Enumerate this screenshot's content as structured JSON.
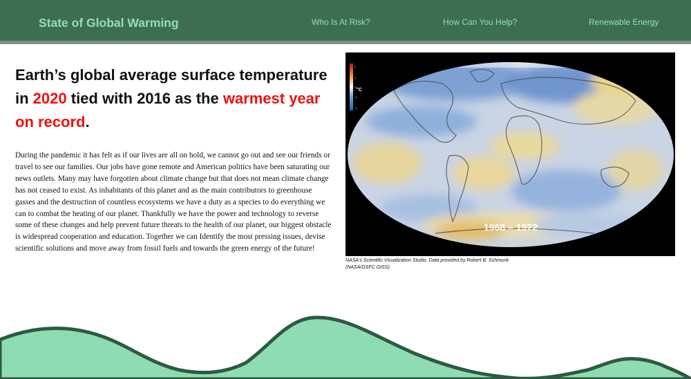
{
  "nav": {
    "brand": "State of Global Warming",
    "links": [
      "Who Is At Risk?",
      "How Can You Help?",
      "Renewable Energy"
    ]
  },
  "headline": {
    "part1": "Earth’s global average surface temperature in ",
    "year": "2020",
    "part2": " tied with 2016 as the ",
    "highlight": "warmest year on record",
    "end": "."
  },
  "body": "During the pandemic it has felt as if our lives are all on hold, we cannot go out and see our friends or travel to see our families. Our jobs have gone remote and American politics have been saturating our news outlets. Many may have forgotten about climate change but that does not mean climate change has not ceased to exist. As inhabitants of this planet and as the main contributors to greenhouse gasses and the destruction of countless ecosystems we have a duty as a species to do everything we can to combat the heating of our planet. Thankfully we have the power and technology to reverse some of these changes and help prevent future threats to the health of our planet, our biggest obstacle is widespread cooperation and education. Together we can Identify the most pressing issues, devise scientific solutions and move away from fossil fuels and towards the green energy of the future!",
  "figure": {
    "year_range": "1968 – 1972",
    "legend_unit": "°C",
    "legend_ticks": [
      "2",
      "1",
      "0",
      "-1",
      "-2"
    ],
    "caption": "NASA's Scientific Visualization Studio. Data provided by Robert B. Schmunk (NASA/GSFC GISS)."
  },
  "colors": {
    "nav_bg": "#3e6e51",
    "nav_text": "#8fe0b4",
    "accent_red": "#ee1111",
    "wave_fill": "#8fdcb2",
    "wave_stroke": "#2d5a42"
  },
  "icons": [
    "world-map-image",
    "temperature-legend-icon"
  ]
}
